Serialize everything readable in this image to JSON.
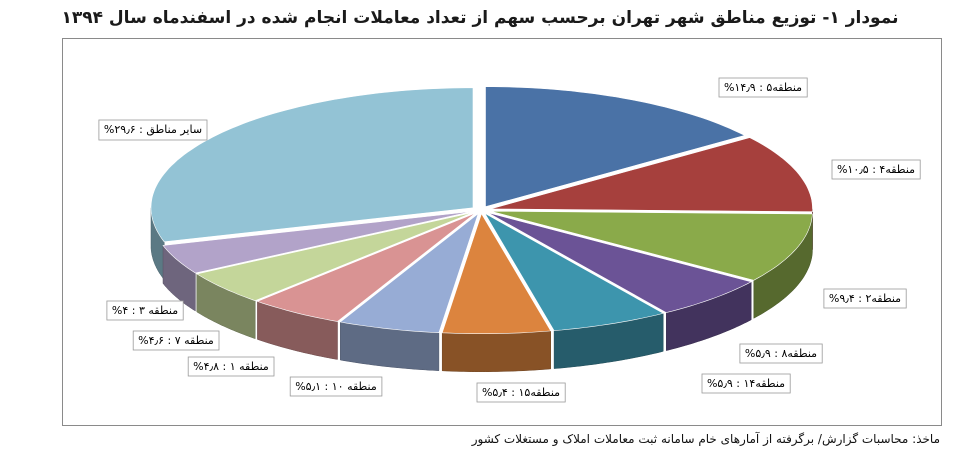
{
  "title": "نمودار ۱- توزیع مناطق شهر تهران برحسب سهم از تعداد معاملات انجام شده در اسفندماه سال ۱۳۹۴",
  "source": "ماخذ: محاسبات گزارش/ برگرفته از آمارهای خام سامانه ثبت معاملات املاک و مستغلات کشور",
  "chart_data": {
    "type": "pie",
    "style": "3d-exploded",
    "title": "نمودار ۱- توزیع مناطق شهر تهران برحسب سهم از تعداد معاملات انجام شده در اسفندماه سال ۱۳۹۴",
    "unit": "%",
    "slices": [
      {
        "name": "منطقه۵",
        "value": 14.9,
        "label": "منطقه۵ : ۱۴٫۹%",
        "color": "#4a72a6"
      },
      {
        "name": "منطقه۴",
        "value": 10.5,
        "label": "منطقه۴ : ۱۰٫۵%",
        "color": "#a6403d"
      },
      {
        "name": "منطقه۲",
        "value": 9.4,
        "label": "منطقه۲ : ۹٫۴%",
        "color": "#8aaa4a"
      },
      {
        "name": "منطقه۸",
        "value": 5.9,
        "label": "منطقه۸ : ۵٫۹%",
        "color": "#6b5396"
      },
      {
        "name": "منطقه۱۴",
        "value": 5.9,
        "label": "منطقه۱۴ : ۵٫۹%",
        "color": "#3d95ad"
      },
      {
        "name": "منطقه۱۵",
        "value": 5.4,
        "label": "منطقه۱۵ : ۵٫۴%",
        "color": "#dc843e"
      },
      {
        "name": "منطقه۱۰",
        "value": 5.1,
        "label": "منطقه ۱۰ : ۵٫۱%",
        "color": "#97acd5"
      },
      {
        "name": "منطقه۱",
        "value": 4.8,
        "label": "منطقه ۱ : ۴٫۸%",
        "color": "#d99393"
      },
      {
        "name": "منطقه۷",
        "value": 4.6,
        "label": "منطقه ۷ : ۴٫۶%",
        "color": "#c4d69a"
      },
      {
        "name": "منطقه۳",
        "value": 4.0,
        "label": "منطقه ۳ : ۴%",
        "color": "#b2a3c9"
      },
      {
        "name": "سایر مناطق",
        "value": 29.6,
        "label": "سایر مناطق : ۲۹٫۶%",
        "color": "#93c3d5"
      }
    ]
  }
}
